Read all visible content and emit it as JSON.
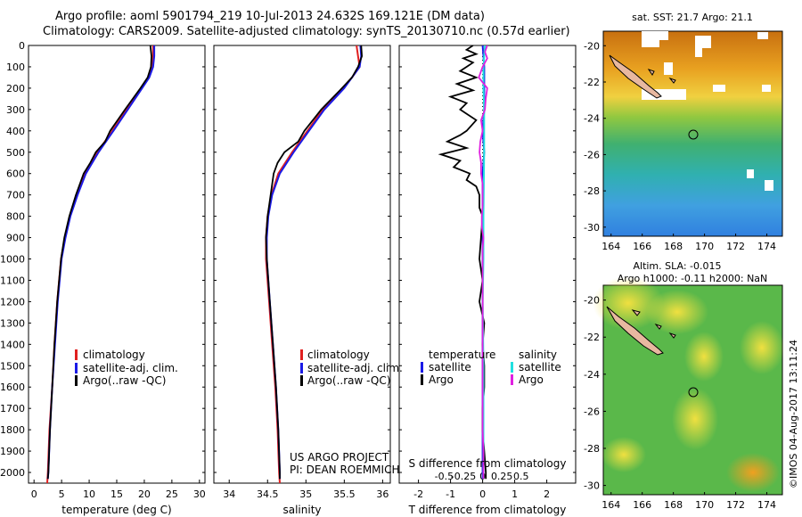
{
  "header": {
    "title_line1": "Argo profile: aoml 5901794_219 10-Jul-2013 24.632S 169.121E (DM data)",
    "title_line2": "Climatology: CARS2009. Satellite-adjusted climatology: synTS_20130710.nc (0.57d earlier)"
  },
  "sst_map": {
    "title": "sat. SST: 21.7  Argo: 21.1",
    "lon_ticks": [
      "164",
      "166",
      "168",
      "170",
      "172",
      "174"
    ],
    "lat_ticks": [
      "-20",
      "-22",
      "-24",
      "-26",
      "-28",
      "-30"
    ],
    "float_lon": 169.121,
    "float_lat": -24.632
  },
  "sla_map": {
    "title1": "Altim. SLA: -0.015",
    "title2": "Argo h1000: -0.11 h2000: NaN",
    "lon_ticks": [
      "164",
      "166",
      "168",
      "170",
      "172",
      "174"
    ],
    "lat_ticks": [
      "-20",
      "-22",
      "-24",
      "-26",
      "-28",
      "-30"
    ]
  },
  "stamp": "©IMOS 04-Aug-2017 13:11:24",
  "colors": {
    "climatology": "#e02020",
    "satellite": "#1a1ae6",
    "argo": "#000000",
    "salinity_sat": "#20e0e0",
    "salinity_argo": "#e020e0"
  },
  "chart_data": [
    {
      "type": "line",
      "name": "temperature",
      "xlabel": "temperature (deg C)",
      "xlim": [
        -1,
        31
      ],
      "ylim": [
        0,
        2050
      ],
      "xticks": [
        0,
        5,
        10,
        15,
        20,
        25,
        30
      ],
      "yticks": [
        0,
        100,
        200,
        300,
        400,
        500,
        600,
        700,
        800,
        900,
        1000,
        1100,
        1200,
        1300,
        1400,
        1500,
        1600,
        1700,
        1800,
        1900,
        2000
      ],
      "legend": [
        "climatology",
        "satellite-adj. clim.",
        "Argo(..raw -QC)"
      ],
      "series": [
        {
          "name": "climatology",
          "depth": [
            0,
            50,
            100,
            150,
            200,
            300,
            400,
            500,
            600,
            700,
            800,
            900,
            1000,
            1200,
            1400,
            1600,
            1800,
            2000,
            2050
          ],
          "values": [
            21.6,
            21.6,
            21.5,
            20.8,
            19.5,
            16.8,
            14.2,
            11.5,
            9.3,
            7.8,
            6.5,
            5.6,
            4.9,
            4.2,
            3.7,
            3.3,
            2.8,
            2.5,
            2.4
          ]
        },
        {
          "name": "satellite",
          "depth": [
            0,
            50,
            100,
            150,
            200,
            300,
            400,
            500,
            600,
            700,
            800,
            900,
            1000,
            1200,
            1400,
            1600,
            1800,
            2000,
            2030
          ],
          "values": [
            21.8,
            21.8,
            21.6,
            20.9,
            19.6,
            17.0,
            14.4,
            11.7,
            9.4,
            7.9,
            6.6,
            5.7,
            5.0,
            4.3,
            3.8,
            3.3,
            2.9,
            2.6,
            2.5
          ]
        },
        {
          "name": "argo",
          "depth": [
            0,
            50,
            100,
            150,
            200,
            300,
            400,
            450,
            500,
            550,
            600,
            700,
            800,
            900,
            1000,
            1200,
            1400,
            1600,
            1800,
            2000,
            2030
          ],
          "values": [
            21.1,
            21.3,
            21.2,
            20.6,
            19.3,
            16.5,
            13.8,
            12.9,
            11.2,
            10.2,
            9.0,
            7.6,
            6.4,
            5.5,
            4.9,
            4.2,
            3.7,
            3.3,
            2.9,
            2.6,
            2.5
          ]
        }
      ]
    },
    {
      "type": "line",
      "name": "salinity",
      "xlabel": "salinity",
      "xlim": [
        33.8,
        36.1
      ],
      "ylim": [
        0,
        2050
      ],
      "xticks": [
        34,
        34.5,
        35,
        35.5,
        36
      ],
      "legend": [
        "climatology",
        "satellite-adj. clim.",
        "Argo(..raw -QC)"
      ],
      "annotation1": "US ARGO PROJECT",
      "annotation2": "PI: DEAN ROEMMICH",
      "series": [
        {
          "name": "climatology",
          "depth": [
            0,
            50,
            100,
            150,
            200,
            300,
            400,
            500,
            600,
            700,
            800,
            900,
            1000,
            1200,
            1400,
            1600,
            1800,
            2000,
            2050
          ],
          "values": [
            35.66,
            35.68,
            35.7,
            35.6,
            35.48,
            35.22,
            35.02,
            34.82,
            34.64,
            34.55,
            34.5,
            34.48,
            34.48,
            34.52,
            34.56,
            34.6,
            34.63,
            34.65,
            34.66
          ]
        },
        {
          "name": "satellite",
          "depth": [
            0,
            50,
            100,
            150,
            200,
            300,
            400,
            500,
            600,
            700,
            800,
            900,
            1000,
            1200,
            1400,
            1600,
            1800,
            2000,
            2030
          ],
          "values": [
            35.71,
            35.72,
            35.7,
            35.6,
            35.5,
            35.24,
            35.04,
            34.84,
            34.66,
            34.56,
            34.51,
            34.49,
            34.49,
            34.53,
            34.57,
            34.61,
            34.64,
            34.66,
            34.66
          ]
        },
        {
          "name": "argo",
          "depth": [
            0,
            50,
            100,
            150,
            200,
            300,
            400,
            450,
            500,
            550,
            600,
            700,
            800,
            900,
            1000,
            1200,
            1400,
            1600,
            1800,
            2000,
            2030
          ],
          "values": [
            35.72,
            35.73,
            35.68,
            35.6,
            35.47,
            35.2,
            34.98,
            34.9,
            34.72,
            34.63,
            34.58,
            34.54,
            34.5,
            34.48,
            34.49,
            34.53,
            34.57,
            34.61,
            34.64,
            34.66,
            34.66
          ]
        }
      ]
    },
    {
      "type": "line",
      "name": "difference",
      "xlabel": "T difference from climatology",
      "xlabel_top": "S difference from climatology",
      "xlim": [
        -2.6,
        2.9
      ],
      "ylim": [
        0,
        2050
      ],
      "xticks": [
        -2,
        -1,
        0,
        1,
        2
      ],
      "s_ticks": [
        "-0.5",
        "-0.25",
        "0",
        "0.25",
        "0.5"
      ],
      "legend_headers": [
        "temperature",
        "salinity"
      ],
      "legend_left": [
        "satellite",
        "Argo"
      ],
      "legend_right": [
        "satellite",
        "Argo"
      ],
      "series": [
        {
          "name": "T satellite",
          "depth": [
            0,
            100,
            200,
            300,
            400,
            500,
            600,
            800,
            1000,
            1200,
            1400,
            1600,
            1800,
            2000,
            2030
          ],
          "values": [
            0.0,
            0.05,
            0.05,
            0.05,
            0.0,
            0.05,
            0.0,
            0.0,
            0.0,
            0.0,
            0.0,
            0.0,
            0.0,
            0.0,
            0.0
          ]
        },
        {
          "name": "T argo",
          "depth": [
            0,
            20,
            40,
            60,
            80,
            100,
            120,
            150,
            180,
            210,
            240,
            270,
            300,
            350,
            400,
            420,
            450,
            480,
            510,
            540,
            570,
            600,
            630,
            660,
            700,
            760,
            800,
            900,
            1000,
            1100,
            1200,
            1300,
            1400,
            1500,
            1600,
            1700,
            1800,
            1900,
            2000,
            2030
          ],
          "values": [
            -0.3,
            -0.5,
            -0.2,
            -0.6,
            -0.3,
            -0.5,
            -0.7,
            -0.2,
            -0.8,
            -0.3,
            -1.0,
            -0.5,
            -0.7,
            -0.2,
            -0.5,
            -0.7,
            -1.1,
            -0.5,
            -1.3,
            -0.7,
            -0.9,
            -0.4,
            -0.5,
            -0.2,
            -0.1,
            -0.1,
            0.0,
            -0.05,
            -0.1,
            0.0,
            -0.1,
            0.05,
            0.0,
            0.05,
            0.05,
            0.0,
            0.0,
            0.05,
            0.1,
            0.1
          ]
        },
        {
          "name": "S satellite",
          "depth": [
            0,
            100,
            200,
            300,
            500,
            800,
            1000,
            1200,
            1500,
            1800,
            2000,
            2030
          ],
          "values": [
            0.03,
            0.01,
            0.01,
            0.02,
            0.02,
            0.01,
            0.01,
            0.0,
            0.01,
            0.01,
            0.01,
            0.01
          ]
        },
        {
          "name": "S argo",
          "depth": [
            0,
            30,
            60,
            100,
            150,
            200,
            250,
            300,
            350,
            400,
            450,
            500,
            550,
            600,
            650,
            700,
            750,
            800,
            850,
            900,
            950,
            1000,
            1100,
            1200,
            1300,
            1400,
            1500,
            1600,
            1700,
            1800,
            1900,
            2000,
            2030
          ],
          "values": [
            0.06,
            0.03,
            0.06,
            0.0,
            -0.05,
            0.06,
            0.04,
            0.03,
            -0.02,
            0.0,
            -0.03,
            -0.04,
            -0.02,
            -0.02,
            0.0,
            0.0,
            0.0,
            -0.01,
            -0.01,
            0.01,
            0.0,
            0.0,
            0.0,
            0.0,
            0.0,
            0.0,
            0.0,
            0.0,
            0.0,
            0.0,
            0.01,
            0.01,
            0.01
          ]
        }
      ]
    }
  ]
}
